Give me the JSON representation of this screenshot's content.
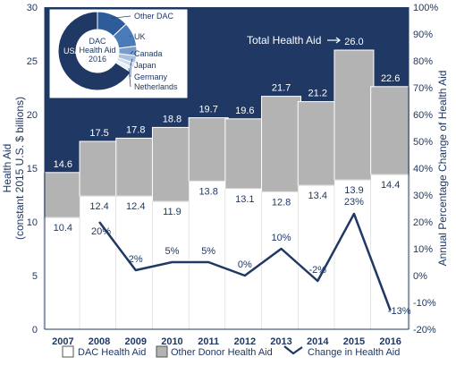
{
  "chart_data": [
    {
      "type": "bar",
      "subtype": "stacked bar with line overlay",
      "categories": [
        "2007",
        "2008",
        "2009",
        "2010",
        "2011",
        "2012",
        "2013",
        "2014",
        "2015",
        "2016"
      ],
      "series": [
        {
          "name": "DAC Health Aid",
          "values": [
            10.4,
            12.4,
            12.4,
            11.9,
            13.8,
            13.1,
            12.8,
            13.4,
            13.9,
            14.4
          ],
          "color": "#ffffff"
        },
        {
          "name": "Other Donor Health Aid",
          "values": [
            4.2,
            5.1,
            5.4,
            6.9,
            5.9,
            6.5,
            8.9,
            7.8,
            12.1,
            8.2
          ],
          "color": "#b3b3b3"
        }
      ],
      "totals": [
        14.6,
        17.5,
        17.8,
        18.8,
        19.7,
        19.6,
        21.7,
        21.2,
        26.0,
        22.6
      ],
      "dac_labels": [
        "10.4",
        "12.4",
        "12.4",
        "11.9",
        "13.8",
        "13.1",
        "12.8",
        "13.4",
        "13.9",
        "14.4"
      ],
      "total_labels": [
        "14.6",
        "17.5",
        "17.8",
        "18.8",
        "19.7",
        "19.6",
        "21.7",
        "21.2",
        "26.0",
        "22.6"
      ],
      "line": {
        "name": "Change in Health Aid",
        "x": [
          "2008",
          "2009",
          "2010",
          "2011",
          "2012",
          "2013",
          "2014",
          "2015",
          "2016"
        ],
        "values": [
          20,
          2,
          5,
          5,
          0,
          10,
          -2,
          23,
          -13
        ],
        "labels": [
          "20%",
          "2%",
          "5%",
          "5%",
          "0%",
          "10%",
          "-2%",
          "23%",
          "-13%"
        ],
        "color": "#1f3864"
      },
      "ylabel": "Health Aid (constant 2015 U.S. $ billions)",
      "ylabel_lines": [
        "Health Aid",
        "(constant 2015 U.S. $ billions)"
      ],
      "y2label": "Annual Percentage Change of Health Aid",
      "ylim": [
        0,
        30
      ],
      "yticks": [
        "0",
        "5",
        "10",
        "15",
        "20",
        "25",
        "30"
      ],
      "y2lim": [
        -20,
        100
      ],
      "y2ticks": [
        "-20%",
        "-10%",
        "0%",
        "10%",
        "20%",
        "30%",
        "40%",
        "50%",
        "60%",
        "70%",
        "80%",
        "90%",
        "100%"
      ],
      "annotation": "Total Health Aid",
      "legend_position": "bottom",
      "legend": [
        "DAC Health Aid",
        "Other Donor Health Aid",
        "Change in Health Aid"
      ],
      "background_color": "#1f3864"
    },
    {
      "type": "pie",
      "subtype": "donut",
      "center_label": [
        "DAC",
        "Health Aid",
        "2016"
      ],
      "labels": [
        "USA",
        "Other DAC",
        "UK",
        "Canada",
        "Japan",
        "Germany",
        "Netherlands"
      ],
      "values": [
        66,
        13,
        10,
        4,
        3,
        2,
        2
      ],
      "colors": [
        "#1f3864",
        "#2e5c9a",
        "#4a7ab8",
        "#7a9ccc",
        "#a9c0e0",
        "#ccdbee",
        "#e6eef8"
      ]
    }
  ]
}
